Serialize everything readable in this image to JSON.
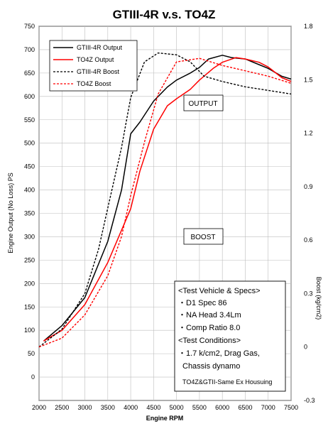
{
  "chart_data": {
    "type": "line",
    "title": "GTIII-4R v.s. TO4Z",
    "xlabel": "Engine RPM",
    "ylabel": "Engine Output (No Loss) PS",
    "ylabel_right": "Boost (kg/cm2)",
    "xlim": [
      2000,
      7500
    ],
    "ylim": [
      -50,
      750
    ],
    "ylim_right": [
      -0.3,
      1.8
    ],
    "x_ticks": [
      2000,
      2500,
      3000,
      3500,
      4000,
      4500,
      5000,
      5500,
      6000,
      6500,
      7000,
      7500
    ],
    "y_ticks": [
      0,
      50,
      100,
      150,
      200,
      250,
      300,
      350,
      400,
      450,
      500,
      550,
      600,
      650,
      700,
      750
    ],
    "y_right_ticks": [
      "1.8",
      "1.5",
      "1.2",
      "0.9",
      "0.6",
      "0.3",
      "0",
      "-0.3"
    ],
    "y_right_tick_values": [
      1.8,
      1.5,
      1.2,
      0.9,
      0.6,
      0.3,
      0,
      -0.3
    ],
    "grid": true,
    "legend": "top-left",
    "series": [
      {
        "name": "GTIII-4R Output",
        "axis": "left",
        "color": "#000000",
        "dash": "solid",
        "x": [
          2100,
          2500,
          3000,
          3500,
          3800,
          4000,
          4200,
          4500,
          4800,
          5000,
          5300,
          5500,
          5700,
          6000,
          6200,
          6500,
          6800,
          7000,
          7300,
          7500
        ],
        "y": [
          77,
          110,
          170,
          290,
          400,
          520,
          545,
          590,
          620,
          635,
          650,
          662,
          680,
          688,
          683,
          680,
          668,
          660,
          643,
          637
        ]
      },
      {
        "name": "TO4Z Output",
        "axis": "left",
        "color": "#ff0000",
        "dash": "solid",
        "x": [
          2100,
          2500,
          3000,
          3500,
          4000,
          4200,
          4500,
          4800,
          5000,
          5300,
          5500,
          5800,
          6000,
          6300,
          6500,
          6800,
          7000,
          7300,
          7500
        ],
        "y": [
          77,
          100,
          155,
          245,
          360,
          440,
          530,
          580,
          595,
          615,
          635,
          660,
          673,
          683,
          680,
          673,
          663,
          640,
          632
        ]
      },
      {
        "name": "GTIII-4R Boost",
        "axis": "right",
        "color": "#000000",
        "dash": "dashed",
        "x": [
          2000,
          2500,
          3000,
          3300,
          3500,
          3800,
          4000,
          4300,
          4600,
          5000,
          5300,
          5600,
          6000,
          6500,
          7000,
          7500
        ],
        "y": [
          0.0,
          0.1,
          0.3,
          0.55,
          0.78,
          1.12,
          1.4,
          1.6,
          1.65,
          1.64,
          1.6,
          1.52,
          1.49,
          1.46,
          1.44,
          1.42
        ]
      },
      {
        "name": "TO4Z Boost",
        "axis": "right",
        "color": "#ff0000",
        "dash": "dashed",
        "x": [
          2000,
          2500,
          3000,
          3500,
          3800,
          4000,
          4300,
          4600,
          5000,
          5500,
          6000,
          6500,
          7000,
          7500
        ],
        "y": [
          0.0,
          0.05,
          0.18,
          0.4,
          0.62,
          0.85,
          1.15,
          1.42,
          1.6,
          1.62,
          1.58,
          1.55,
          1.52,
          1.48
        ]
      }
    ],
    "annotations": [
      "OUTPUT",
      "BOOST"
    ],
    "spec_box": {
      "lines": [
        "<Test Vehicle & Specs>",
        "・D1 Spec 86",
        "・NA Head 3.4Lm",
        "・Comp Ratio 8.0",
        "<Test Conditions>",
        "・1.7 k/cm2, Drag Gas,",
        "Chassis dynamo",
        "TO4Z&GTII-Same Ex Housuing"
      ]
    }
  }
}
